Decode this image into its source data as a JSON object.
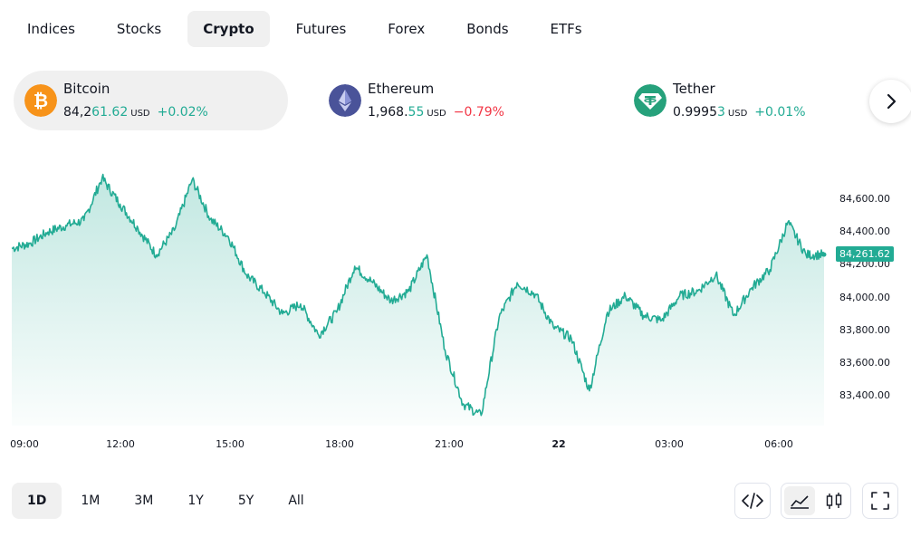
{
  "tabs": [
    "Indices",
    "Stocks",
    "Crypto",
    "Futures",
    "Forex",
    "Bonds",
    "ETFs"
  ],
  "active_tab": "Crypto",
  "tickers": [
    {
      "name": "Bitcoin",
      "price_main": "84,2",
      "price_last": "61.62",
      "currency": "USD",
      "change": "+0.02%",
      "direction": "up",
      "logo_color": "#f7931a",
      "icon": "bitcoin-icon"
    },
    {
      "name": "Ethereum",
      "price_main": "1,968.",
      "price_last": "55",
      "currency": "USD",
      "change": "−0.79%",
      "direction": "down",
      "logo_color": "#4a5399",
      "icon": "ethereum-icon"
    },
    {
      "name": "Tether",
      "price_main": "0.9995",
      "price_last": "3",
      "currency": "USD",
      "change": "+0.01%",
      "direction": "up",
      "logo_color": "#26a17b",
      "icon": "tether-icon"
    }
  ],
  "chart": {
    "y_ticks": [
      "84,600.00",
      "84,400.00",
      "84,200.00",
      "84,000.00",
      "83,800.00",
      "83,600.00",
      "83,400.00"
    ],
    "x_ticks": [
      "09:00",
      "12:00",
      "15:00",
      "18:00",
      "21:00",
      "22",
      "03:00",
      "06:00"
    ],
    "last_price_label": "84,261.62",
    "line_color": "#22ab94"
  },
  "chart_data": {
    "type": "area",
    "x": [
      "09:00",
      "09:30",
      "10:00",
      "10:30",
      "11:00",
      "11:30",
      "12:00",
      "12:30",
      "13:00",
      "13:30",
      "14:00",
      "14:30",
      "15:00",
      "15:30",
      "16:00",
      "16:30",
      "17:00",
      "17:30",
      "18:00",
      "18:30",
      "19:00",
      "19:30",
      "20:00",
      "20:30",
      "21:00",
      "21:30",
      "22:00",
      "22:30",
      "23:00",
      "23:30",
      "00:00",
      "00:30",
      "01:00",
      "01:30",
      "02:00",
      "02:30",
      "03:00",
      "03:30",
      "04:00",
      "04:30",
      "05:00",
      "05:30",
      "06:00",
      "06:30",
      "07:00",
      "07:20"
    ],
    "values": [
      84300,
      84330,
      84400,
      84440,
      84470,
      84730,
      84570,
      84420,
      84260,
      84410,
      84720,
      84480,
      84370,
      84140,
      84030,
      83900,
      83960,
      83770,
      83910,
      84190,
      84090,
      83980,
      84040,
      84260,
      83680,
      83350,
      83280,
      83880,
      84090,
      84020,
      83820,
      83750,
      83430,
      83910,
      84010,
      83890,
      83860,
      84010,
      84040,
      84140,
      83890,
      84060,
      84170,
      84460,
      84260,
      84262
    ],
    "y_ticks": [
      83400,
      83600,
      83800,
      84000,
      84200,
      84400,
      84600
    ],
    "x_ticks": [
      "09:00",
      "12:00",
      "15:00",
      "18:00",
      "21:00",
      "22",
      "03:00",
      "06:00"
    ],
    "ylim": [
      83250,
      84780
    ],
    "last_value_label": "84,261.62",
    "grid": false
  },
  "ranges": [
    "1D",
    "1M",
    "3M",
    "1Y",
    "5Y",
    "All"
  ],
  "active_range": "1D"
}
